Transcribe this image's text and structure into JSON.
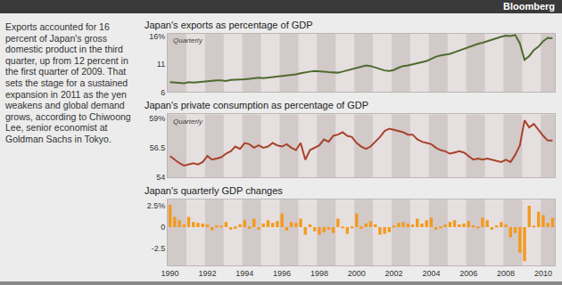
{
  "header": "Bloomberg",
  "note": "Exports accounted for 16 percent of Japan's gross domestic product in the third quarter, up from 12 percent in the first quarter of 2009. That sets the stage for a sustained expansion in 2011 as the yen weakens and global demand grows, according to Chiwoong Lee, senior economist at Goldman Sachs in Tokyo.",
  "chart_data": [
    {
      "type": "line",
      "title": "Japan's exports as percentage of GDP",
      "subtitle": "Quarterly",
      "categories": [
        "1990",
        null,
        null,
        null,
        null,
        null,
        null,
        null,
        "1992",
        null,
        null,
        null,
        null,
        null,
        null,
        null,
        "1994",
        null,
        null,
        null,
        null,
        null,
        null,
        null,
        "1996",
        null,
        null,
        null,
        null,
        null,
        null,
        null,
        "1998",
        null,
        null,
        null,
        null,
        null,
        null,
        null,
        "2000",
        null,
        null,
        null,
        null,
        null,
        null,
        null,
        "2002",
        null,
        null,
        null,
        null,
        null,
        null,
        null,
        "2004",
        null,
        null,
        null,
        null,
        null,
        null,
        null,
        "2006",
        null,
        null,
        null,
        null,
        null,
        null,
        null,
        "2008",
        null,
        null,
        null,
        null,
        null,
        null,
        null,
        "2010",
        null,
        null
      ],
      "values": [
        7.8,
        7.7,
        7.6,
        7.6,
        7.8,
        7.7,
        7.8,
        7.9,
        8.0,
        8.1,
        8.1,
        8.1,
        8.0,
        8.2,
        8.2,
        8.3,
        8.3,
        8.4,
        8.5,
        8.6,
        8.5,
        8.6,
        8.7,
        8.7,
        8.8,
        8.9,
        9.0,
        9.2,
        9.4,
        9.6,
        9.7,
        9.8,
        9.8,
        9.7,
        9.6,
        9.5,
        9.5,
        9.7,
        9.9,
        10.1,
        10.4,
        10.6,
        10.8,
        10.7,
        10.4,
        10.1,
        9.9,
        9.8,
        10.0,
        10.4,
        10.7,
        10.8,
        11.0,
        11.1,
        11.3,
        11.6,
        12.0,
        12.4,
        12.6,
        12.7,
        12.9,
        13.2,
        13.5,
        13.9,
        14.2,
        14.5,
        14.7,
        14.9,
        15.2,
        15.5,
        15.8,
        16.0,
        16.2,
        16.1,
        16.3,
        14.8,
        11.8,
        12.5,
        13.6,
        14.2,
        15.2,
        15.8,
        15.7
      ],
      "color": "#4e6b2e",
      "ylim": [
        6,
        16.5
      ],
      "yticks": [
        6,
        11,
        {
          "value": 16,
          "label": "16%"
        }
      ],
      "grid": false,
      "tick_labels": "y"
    },
    {
      "type": "line",
      "title": "Japan's private consumption as percentage of GDP",
      "subtitle": "Quarterly",
      "categories": [
        "1990",
        null,
        null,
        null,
        null,
        null,
        null,
        null,
        "1992",
        null,
        null,
        null,
        null,
        null,
        null,
        null,
        "1994",
        null,
        null,
        null,
        null,
        null,
        null,
        null,
        "1996",
        null,
        null,
        null,
        null,
        null,
        null,
        null,
        "1998",
        null,
        null,
        null,
        null,
        null,
        null,
        null,
        "2000",
        null,
        null,
        null,
        null,
        null,
        null,
        null,
        "2002",
        null,
        null,
        null,
        null,
        null,
        null,
        null,
        "2004",
        null,
        null,
        null,
        null,
        null,
        null,
        null,
        "2006",
        null,
        null,
        null,
        null,
        null,
        null,
        null,
        "2008",
        null,
        null,
        null,
        null,
        null,
        null,
        null,
        "2010",
        null,
        null
      ],
      "values": [
        55.8,
        55.5,
        55.2,
        55.0,
        55.1,
        55.2,
        55.1,
        55.3,
        55.8,
        55.5,
        55.6,
        55.7,
        56.0,
        56.2,
        56.6,
        56.4,
        56.9,
        56.8,
        56.5,
        56.7,
        56.5,
        56.6,
        56.9,
        56.7,
        56.6,
        56.8,
        56.5,
        56.3,
        56.9,
        55.5,
        56.3,
        56.5,
        56.7,
        57.2,
        57.0,
        57.5,
        57.6,
        57.8,
        57.5,
        57.4,
        56.9,
        56.6,
        56.4,
        56.6,
        57.0,
        57.4,
        57.9,
        58.1,
        58.0,
        57.9,
        57.8,
        57.6,
        57.6,
        57.2,
        57.0,
        56.9,
        56.8,
        56.5,
        56.3,
        56.2,
        56.0,
        56.1,
        56.2,
        56.1,
        55.8,
        55.5,
        55.6,
        55.5,
        55.6,
        55.5,
        55.4,
        55.3,
        55.5,
        55.3,
        55.9,
        56.7,
        58.8,
        58.2,
        58.5,
        58.0,
        57.5,
        57.1,
        57.1
      ],
      "color": "#a8432c",
      "ylim": [
        54,
        59.3
      ],
      "yticks": [
        54,
        56.5,
        {
          "value": 59,
          "label": "59%"
        }
      ],
      "grid": false,
      "tick_labels": "y"
    },
    {
      "type": "bar",
      "title": "Japan's quarterly GDP changes",
      "categories": [
        "1990",
        null,
        null,
        null,
        null,
        null,
        null,
        null,
        "1992",
        null,
        null,
        null,
        null,
        null,
        null,
        null,
        "1994",
        null,
        null,
        null,
        null,
        null,
        null,
        null,
        "1996",
        null,
        null,
        null,
        null,
        null,
        null,
        null,
        "1998",
        null,
        null,
        null,
        null,
        null,
        null,
        null,
        "2000",
        null,
        null,
        null,
        null,
        null,
        null,
        null,
        "2002",
        null,
        null,
        null,
        null,
        null,
        null,
        null,
        "2004",
        null,
        null,
        null,
        null,
        null,
        null,
        null,
        "2006",
        null,
        null,
        null,
        null,
        null,
        null,
        null,
        "2008",
        null,
        null,
        null,
        null,
        null,
        null,
        null,
        "2010",
        null,
        null
      ],
      "values": [
        2.6,
        1.2,
        0.8,
        0.3,
        1.2,
        0.6,
        0.5,
        0.4,
        0.3,
        -0.4,
        0.2,
        0.1,
        0.6,
        -0.3,
        -0.2,
        0.3,
        0.8,
        -0.2,
        1.0,
        -0.3,
        0.4,
        0.8,
        0.5,
        0.7,
        1.6,
        -0.4,
        0.6,
        0.5,
        1.0,
        -0.9,
        0.3,
        -0.5,
        -0.9,
        -0.6,
        -0.3,
        -0.7,
        1.0,
        -0.1,
        -0.8,
        -0.1,
        1.6,
        -0.2,
        0.4,
        0.7,
        0.3,
        -0.9,
        -0.8,
        -0.6,
        0.2,
        0.5,
        0.6,
        0.4,
        0.3,
        1.0,
        0.4,
        0.8,
        1.1,
        -0.3,
        -0.1,
        0.3,
        0.6,
        0.8,
        0.3,
        0.4,
        0.7,
        0.2,
        -0.1,
        1.1,
        0.8,
        -0.3,
        0.2,
        0.6,
        0.3,
        -1.2,
        -0.7,
        -3.0,
        -4.0,
        2.5,
        0.1,
        1.8,
        1.4,
        0.5,
        1.1
      ],
      "color": "#f39a1e",
      "ylim": [
        -4.5,
        3.2
      ],
      "yticks": [
        -2.5,
        0,
        {
          "value": 2.5,
          "label": "2.5%"
        }
      ],
      "grid": false
    }
  ]
}
